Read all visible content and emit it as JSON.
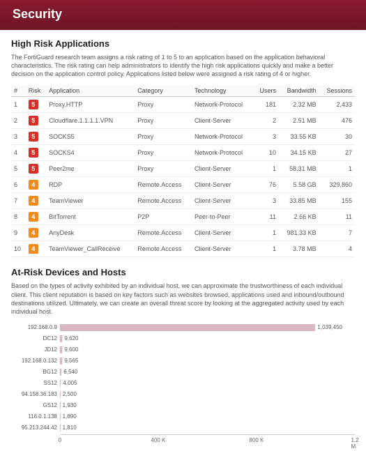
{
  "header": {
    "title": "Security"
  },
  "sections": {
    "apps": {
      "heading": "High Risk Applications",
      "description": "The FortiGuard research team assigns a risk rating of 1 to 5 to an application based on the application behavioral characteristics. The risk rating can help administrators to identify the high risk applications quickly and make a better decision on the application control policy. Applications listed below were assigned a risk rating of 4 or higher.",
      "columns": [
        "#",
        "Risk",
        "Application",
        "Category",
        "Technology",
        "Users",
        "Bandwidth",
        "Sessions"
      ],
      "risk_colors": {
        "5": "#d93025",
        "4": "#f28b1c"
      },
      "rows": [
        {
          "n": 1,
          "risk": 5,
          "app": "Proxy.HTTP",
          "cat": "Proxy",
          "tech": "Network-Protocol",
          "users": 181,
          "bw": "2.32 MB",
          "sess": "2,433"
        },
        {
          "n": 2,
          "risk": 5,
          "app": "Cloudflare.1.1.1.1.VPN",
          "cat": "Proxy",
          "tech": "Client-Server",
          "users": 2,
          "bw": "2.51 MB",
          "sess": "476"
        },
        {
          "n": 3,
          "risk": 5,
          "app": "SOCKS5",
          "cat": "Proxy",
          "tech": "Network-Protocol",
          "users": 3,
          "bw": "33.55 KB",
          "sess": "30"
        },
        {
          "n": 4,
          "risk": 5,
          "app": "SOCKS4",
          "cat": "Proxy",
          "tech": "Network-Protocol",
          "users": 10,
          "bw": "34.15 KB",
          "sess": "27"
        },
        {
          "n": 5,
          "risk": 5,
          "app": "Peer2me",
          "cat": "Proxy",
          "tech": "Client-Server",
          "users": 1,
          "bw": "58.31 MB",
          "sess": "1"
        },
        {
          "n": 6,
          "risk": 4,
          "app": "RDP",
          "cat": "Remote.Access",
          "tech": "Client-Server",
          "users": 76,
          "bw": "5.58 GB",
          "sess": "329,860"
        },
        {
          "n": 7,
          "risk": 4,
          "app": "TeamViewer",
          "cat": "Remote.Access",
          "tech": "Client-Server",
          "users": 3,
          "bw": "33.85 MB",
          "sess": "155"
        },
        {
          "n": 8,
          "risk": 4,
          "app": "BitTorrent",
          "cat": "P2P",
          "tech": "Peer-to-Peer",
          "users": 11,
          "bw": "2.66 KB",
          "sess": "11"
        },
        {
          "n": 9,
          "risk": 4,
          "app": "AnyDesk",
          "cat": "Remote.Access",
          "tech": "Client-Server",
          "users": 1,
          "bw": "981.33 KB",
          "sess": "7"
        },
        {
          "n": 10,
          "risk": 4,
          "app": "TeamViewer_CallReceive",
          "cat": "Remote.Access",
          "tech": "Client-Server",
          "users": 1,
          "bw": "3.78 MB",
          "sess": "4"
        }
      ]
    },
    "hosts": {
      "heading": "At-Risk Devices and Hosts",
      "description": "Based on the types of activity exhibited by an individual host, we can approximate the trustworthiness of each individual client. This client reputation is based on key factors such as websites browsed, applications used and inbound/outbound destinations utilized. Ultimately, we can create an overall threat score by looking at the aggregated activity used by each individual host.",
      "chart": {
        "type": "bar-horizontal",
        "bar_color": "#d9b7c2",
        "grid_color": "#e0e0e0",
        "background_color": "#ffffff",
        "label_fontsize": 8,
        "xlim": [
          0,
          1200000
        ],
        "ticks": [
          {
            "v": 0,
            "label": "0"
          },
          {
            "v": 400000,
            "label": "400 K"
          },
          {
            "v": 800000,
            "label": "800 K"
          },
          {
            "v": 1200000,
            "label": "1.2 M"
          }
        ],
        "rows": [
          {
            "host": "192.168.0.9",
            "value": 1039450,
            "label": "1,039,450"
          },
          {
            "host": "DC12",
            "value": 9620,
            "label": "9,620"
          },
          {
            "host": "JD12",
            "value": 9600,
            "label": "9,600"
          },
          {
            "host": "192.168.0.132",
            "value": 9565,
            "label": "9,565"
          },
          {
            "host": "BG12",
            "value": 6540,
            "label": "6,540"
          },
          {
            "host": "SS12",
            "value": 4005,
            "label": "4,005"
          },
          {
            "host": "94.158.36.183",
            "value": 2500,
            "label": "2,500"
          },
          {
            "host": "GS12",
            "value": 1930,
            "label": "1,930"
          },
          {
            "host": "116.0.1.138",
            "value": 1890,
            "label": "1,890"
          },
          {
            "host": "95.213.244.42",
            "value": 1810,
            "label": "1,810"
          }
        ]
      }
    }
  }
}
